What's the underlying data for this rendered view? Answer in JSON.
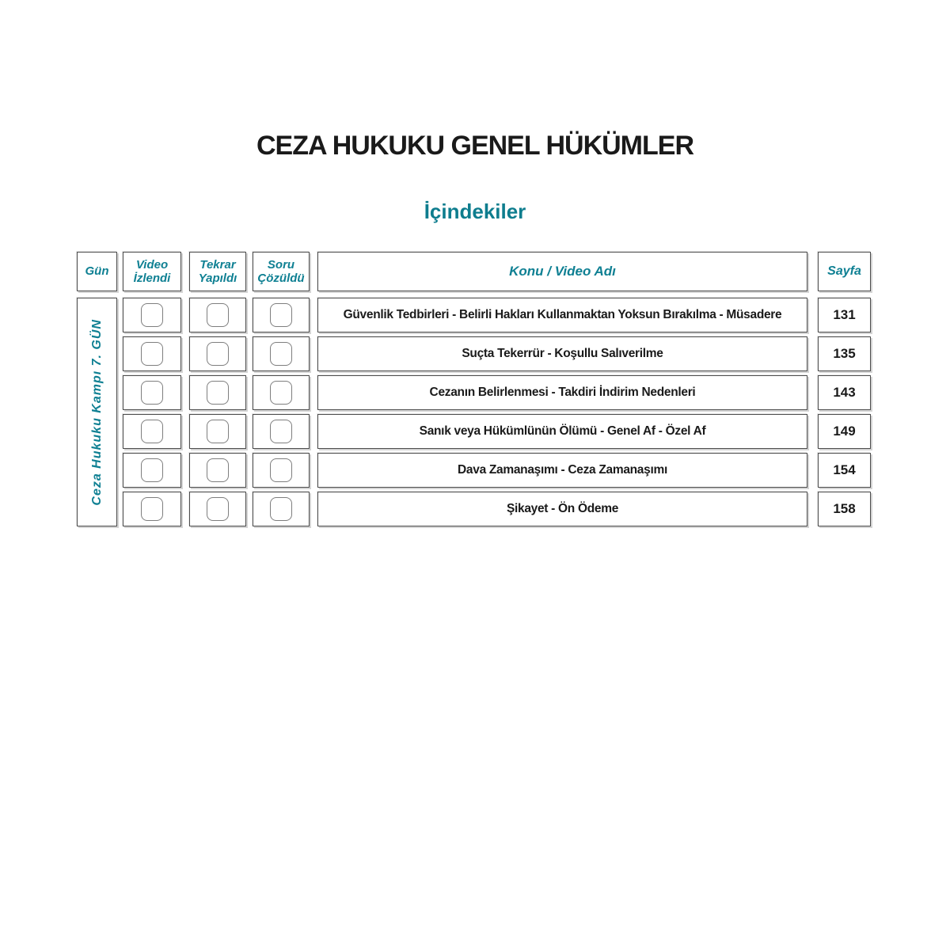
{
  "page": {
    "title": "CEZA HUKUKU GENEL HÜKÜMLER",
    "subtitle": "İçindekiler"
  },
  "colors": {
    "accent_teal": "#0e7d8e",
    "text_black": "#1a1a1a",
    "border_dark": "#4d4d4d",
    "border_shadow": "#d4d4d4"
  },
  "table": {
    "day_label": "Ceza Hukuku Kampı 7. GÜN",
    "headers": {
      "day": "Gün",
      "video": "Video İzlendi",
      "repeat": "Tekrar Yapıldı",
      "question": "Soru Çözüldü",
      "topic": "Konu / Video Adı",
      "page": "Sayfa"
    },
    "rows": [
      {
        "topic": "Güvenlik Tedbirleri - Belirli Hakları Kullanmaktan Yoksun Bırakılma - Müsadere",
        "page": "131"
      },
      {
        "topic": "Suçta Tekerrür - Koşullu Salıverilme",
        "page": "135"
      },
      {
        "topic": "Cezanın Belirlenmesi - Takdiri İndirim Nedenleri",
        "page": "143"
      },
      {
        "topic": "Sanık veya Hükümlünün Ölümü - Genel Af - Özel Af",
        "page": "149"
      },
      {
        "topic": "Dava Zamanaşımı - Ceza Zamanaşımı",
        "page": "154"
      },
      {
        "topic": "Şikayet - Ön Ödeme",
        "page": "158"
      }
    ]
  }
}
